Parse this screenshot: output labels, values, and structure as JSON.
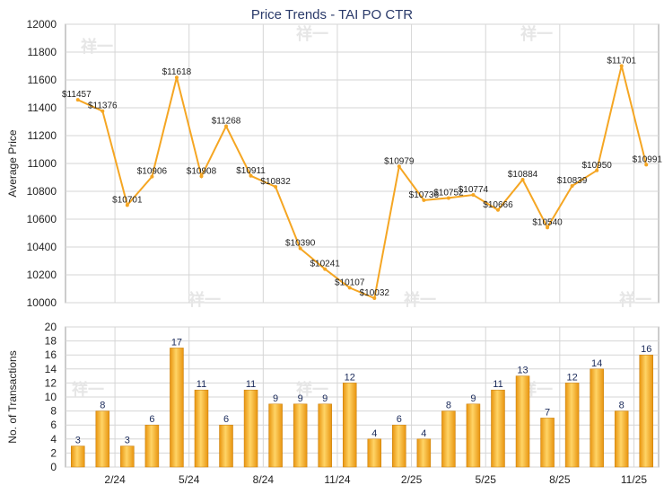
{
  "chart_data": [
    {
      "type": "line",
      "title": "Price Trends - TAI PO CTR",
      "ylabel": "Average Price",
      "ylim": [
        10000,
        12000
      ],
      "yticks": [
        10000,
        10200,
        10400,
        10600,
        10800,
        11000,
        11200,
        11400,
        11600,
        11800,
        12000
      ],
      "x_labels": [
        "2/24",
        "5/24",
        "8/24",
        "11/24",
        "2/25",
        "5/25",
        "8/25",
        "11/25"
      ],
      "values": [
        11457,
        11376,
        10701,
        10906,
        11618,
        10908,
        11268,
        10911,
        10832,
        10390,
        10241,
        10107,
        10032,
        10979,
        10736,
        10752,
        10774,
        10666,
        10884,
        10540,
        10839,
        10950,
        11701,
        10991
      ],
      "labels": [
        "$11457",
        "$11376",
        "$10701",
        "$10906",
        "$11618",
        "$10908",
        "$11268",
        "$10911",
        "$10832",
        "$10390",
        "$10241",
        "$10107",
        "$10032",
        "$10979",
        "$10736",
        "$10752",
        "$10774",
        "$10666",
        "$10884",
        "$10540",
        "$10839",
        "$10950",
        "$11701",
        "$10991"
      ],
      "color": "#f5a623"
    },
    {
      "type": "bar",
      "ylabel": "No. of Transactions",
      "ylim": [
        0,
        20
      ],
      "yticks": [
        0,
        2,
        4,
        6,
        8,
        10,
        12,
        14,
        16,
        18,
        20
      ],
      "x_labels": [
        "2/24",
        "5/24",
        "8/24",
        "11/24",
        "2/25",
        "5/25",
        "8/25",
        "11/25"
      ],
      "values": [
        3,
        8,
        3,
        6,
        17,
        11,
        6,
        11,
        9,
        9,
        9,
        12,
        4,
        6,
        4,
        8,
        9,
        11,
        13,
        7,
        12,
        14,
        8,
        16
      ],
      "color": "#f5a623"
    }
  ],
  "watermark": "祥一"
}
